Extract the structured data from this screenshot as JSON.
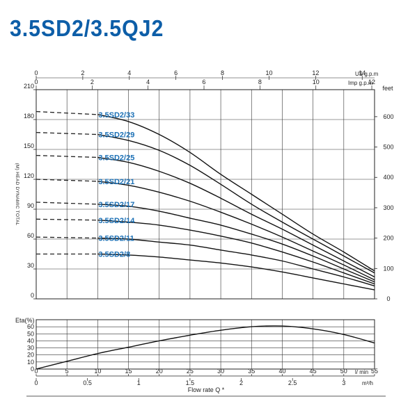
{
  "title": "3.5SD2/3.5QJ2",
  "chart_data": [
    {
      "type": "line",
      "title": "",
      "xlabel": "Flow rate Q *",
      "ylabel_left": "(M) HEAD DYNAMIC TOTAL",
      "ylabel_right": "feet",
      "x_unit": "l/ min",
      "xlim": [
        0,
        55
      ],
      "ylim": [
        0,
        210
      ],
      "y_ticks": [
        "0",
        "30",
        "60",
        "90",
        "120",
        "150",
        "180",
        "210"
      ],
      "y_right_ticks": [
        "0",
        "100",
        "200",
        "300",
        "400",
        "500",
        "600"
      ],
      "x_ticks": [
        "0",
        "5",
        "10",
        "15",
        "20",
        "25",
        "30",
        "35",
        "40",
        "45",
        "50",
        "55"
      ],
      "top_axis_us": {
        "unit": "US g.p.m",
        "ticks": [
          "0",
          "2",
          "4",
          "6",
          "8",
          "10",
          "12",
          "14"
        ]
      },
      "top_axis_imp": {
        "unit": "Imp g.p.m",
        "ticks": [
          "0",
          "2",
          "4",
          "6",
          "8",
          "10",
          "12"
        ]
      },
      "grid": true,
      "series": [
        {
          "name": "3.5SD2/33",
          "dashed": [
            [
              0,
              188
            ],
            [
              10,
              185
            ]
          ],
          "values": [
            [
              10,
              185
            ],
            [
              15,
              178
            ],
            [
              20,
              165
            ],
            [
              25,
              147
            ],
            [
              30,
              125
            ],
            [
              35,
              105
            ],
            [
              40,
              85
            ],
            [
              45,
              65
            ],
            [
              50,
              47
            ],
            [
              55,
              28
            ]
          ]
        },
        {
          "name": "3.5SD2/29",
          "dashed": [
            [
              0,
              167
            ],
            [
              10,
              165
            ]
          ],
          "values": [
            [
              10,
              165
            ],
            [
              15,
              159
            ],
            [
              20,
              149
            ],
            [
              25,
              134
            ],
            [
              30,
              115
            ],
            [
              35,
              95
            ],
            [
              40,
              77
            ],
            [
              45,
              60
            ],
            [
              50,
              43
            ],
            [
              55,
              26
            ]
          ]
        },
        {
          "name": "3.5SD2/25",
          "dashed": [
            [
              0,
              144
            ],
            [
              10,
              142
            ]
          ],
          "values": [
            [
              10,
              142
            ],
            [
              15,
              137
            ],
            [
              20,
              128
            ],
            [
              25,
              116
            ],
            [
              30,
              101
            ],
            [
              35,
              85
            ],
            [
              40,
              70
            ],
            [
              45,
              54
            ],
            [
              50,
              38
            ],
            [
              55,
              22
            ]
          ]
        },
        {
          "name": "3.5SD2/21",
          "dashed": [
            [
              0,
              120
            ],
            [
              10,
              118
            ]
          ],
          "values": [
            [
              10,
              118
            ],
            [
              15,
              114
            ],
            [
              20,
              107
            ],
            [
              25,
              98
            ],
            [
              30,
              87
            ],
            [
              35,
              75
            ],
            [
              40,
              62
            ],
            [
              45,
              48
            ],
            [
              50,
              34
            ],
            [
              55,
              19
            ]
          ]
        },
        {
          "name": "3.5SD2/17",
          "dashed": [
            [
              0,
              97
            ],
            [
              10,
              95
            ]
          ],
          "values": [
            [
              10,
              95
            ],
            [
              15,
              93
            ],
            [
              20,
              88
            ],
            [
              25,
              81
            ],
            [
              30,
              74
            ],
            [
              35,
              65
            ],
            [
              40,
              55
            ],
            [
              45,
              43
            ],
            [
              50,
              30
            ],
            [
              55,
              17
            ]
          ]
        },
        {
          "name": "3.5SD2/14",
          "dashed": [
            [
              0,
              80
            ],
            [
              10,
              79
            ]
          ],
          "values": [
            [
              10,
              79
            ],
            [
              15,
              77
            ],
            [
              20,
              74
            ],
            [
              25,
              69
            ],
            [
              30,
              63
            ],
            [
              35,
              56
            ],
            [
              40,
              47
            ],
            [
              45,
              37
            ],
            [
              50,
              26
            ],
            [
              55,
              15
            ]
          ]
        },
        {
          "name": "3.5SD2/11",
          "dashed": [
            [
              0,
              62
            ],
            [
              10,
              61
            ]
          ],
          "values": [
            [
              10,
              61
            ],
            [
              15,
              60
            ],
            [
              20,
              57
            ],
            [
              25,
              54
            ],
            [
              30,
              49
            ],
            [
              35,
              44
            ],
            [
              40,
              38
            ],
            [
              45,
              30
            ],
            [
              50,
              22
            ],
            [
              55,
              13
            ]
          ]
        },
        {
          "name": "3.5SD2/8",
          "dashed": [
            [
              0,
              45
            ],
            [
              10,
              45
            ]
          ],
          "values": [
            [
              10,
              45
            ],
            [
              15,
              44
            ],
            [
              20,
              42
            ],
            [
              25,
              39
            ],
            [
              30,
              36
            ],
            [
              35,
              32
            ],
            [
              40,
              27
            ],
            [
              45,
              21
            ],
            [
              50,
              15
            ],
            [
              55,
              9
            ]
          ]
        }
      ]
    },
    {
      "type": "line",
      "title": "",
      "ylabel": "Eta(%)",
      "xlabel": "Flow rate Q *",
      "x_unit": "l/ min",
      "x2_unit": "m³/h",
      "xlim": [
        0,
        55
      ],
      "ylim": [
        0,
        70
      ],
      "y_ticks": [
        "0",
        "10",
        "20",
        "30",
        "40",
        "50",
        "60"
      ],
      "x_ticks": [
        "0",
        "5",
        "10",
        "15",
        "20",
        "25",
        "30",
        "35",
        "40",
        "45",
        "50",
        "55"
      ],
      "x2_ticks": [
        "0",
        "0.5",
        "1",
        "1.5",
        "2",
        "2.5",
        "3"
      ],
      "grid": true,
      "series": [
        {
          "values": [
            [
              0,
              0
            ],
            [
              5,
              11
            ],
            [
              10,
              22
            ],
            [
              15,
              31
            ],
            [
              20,
              40
            ],
            [
              25,
              48
            ],
            [
              30,
              55
            ],
            [
              35,
              60
            ],
            [
              40,
              61
            ],
            [
              45,
              57
            ],
            [
              50,
              49
            ],
            [
              55,
              37
            ]
          ]
        }
      ]
    }
  ]
}
